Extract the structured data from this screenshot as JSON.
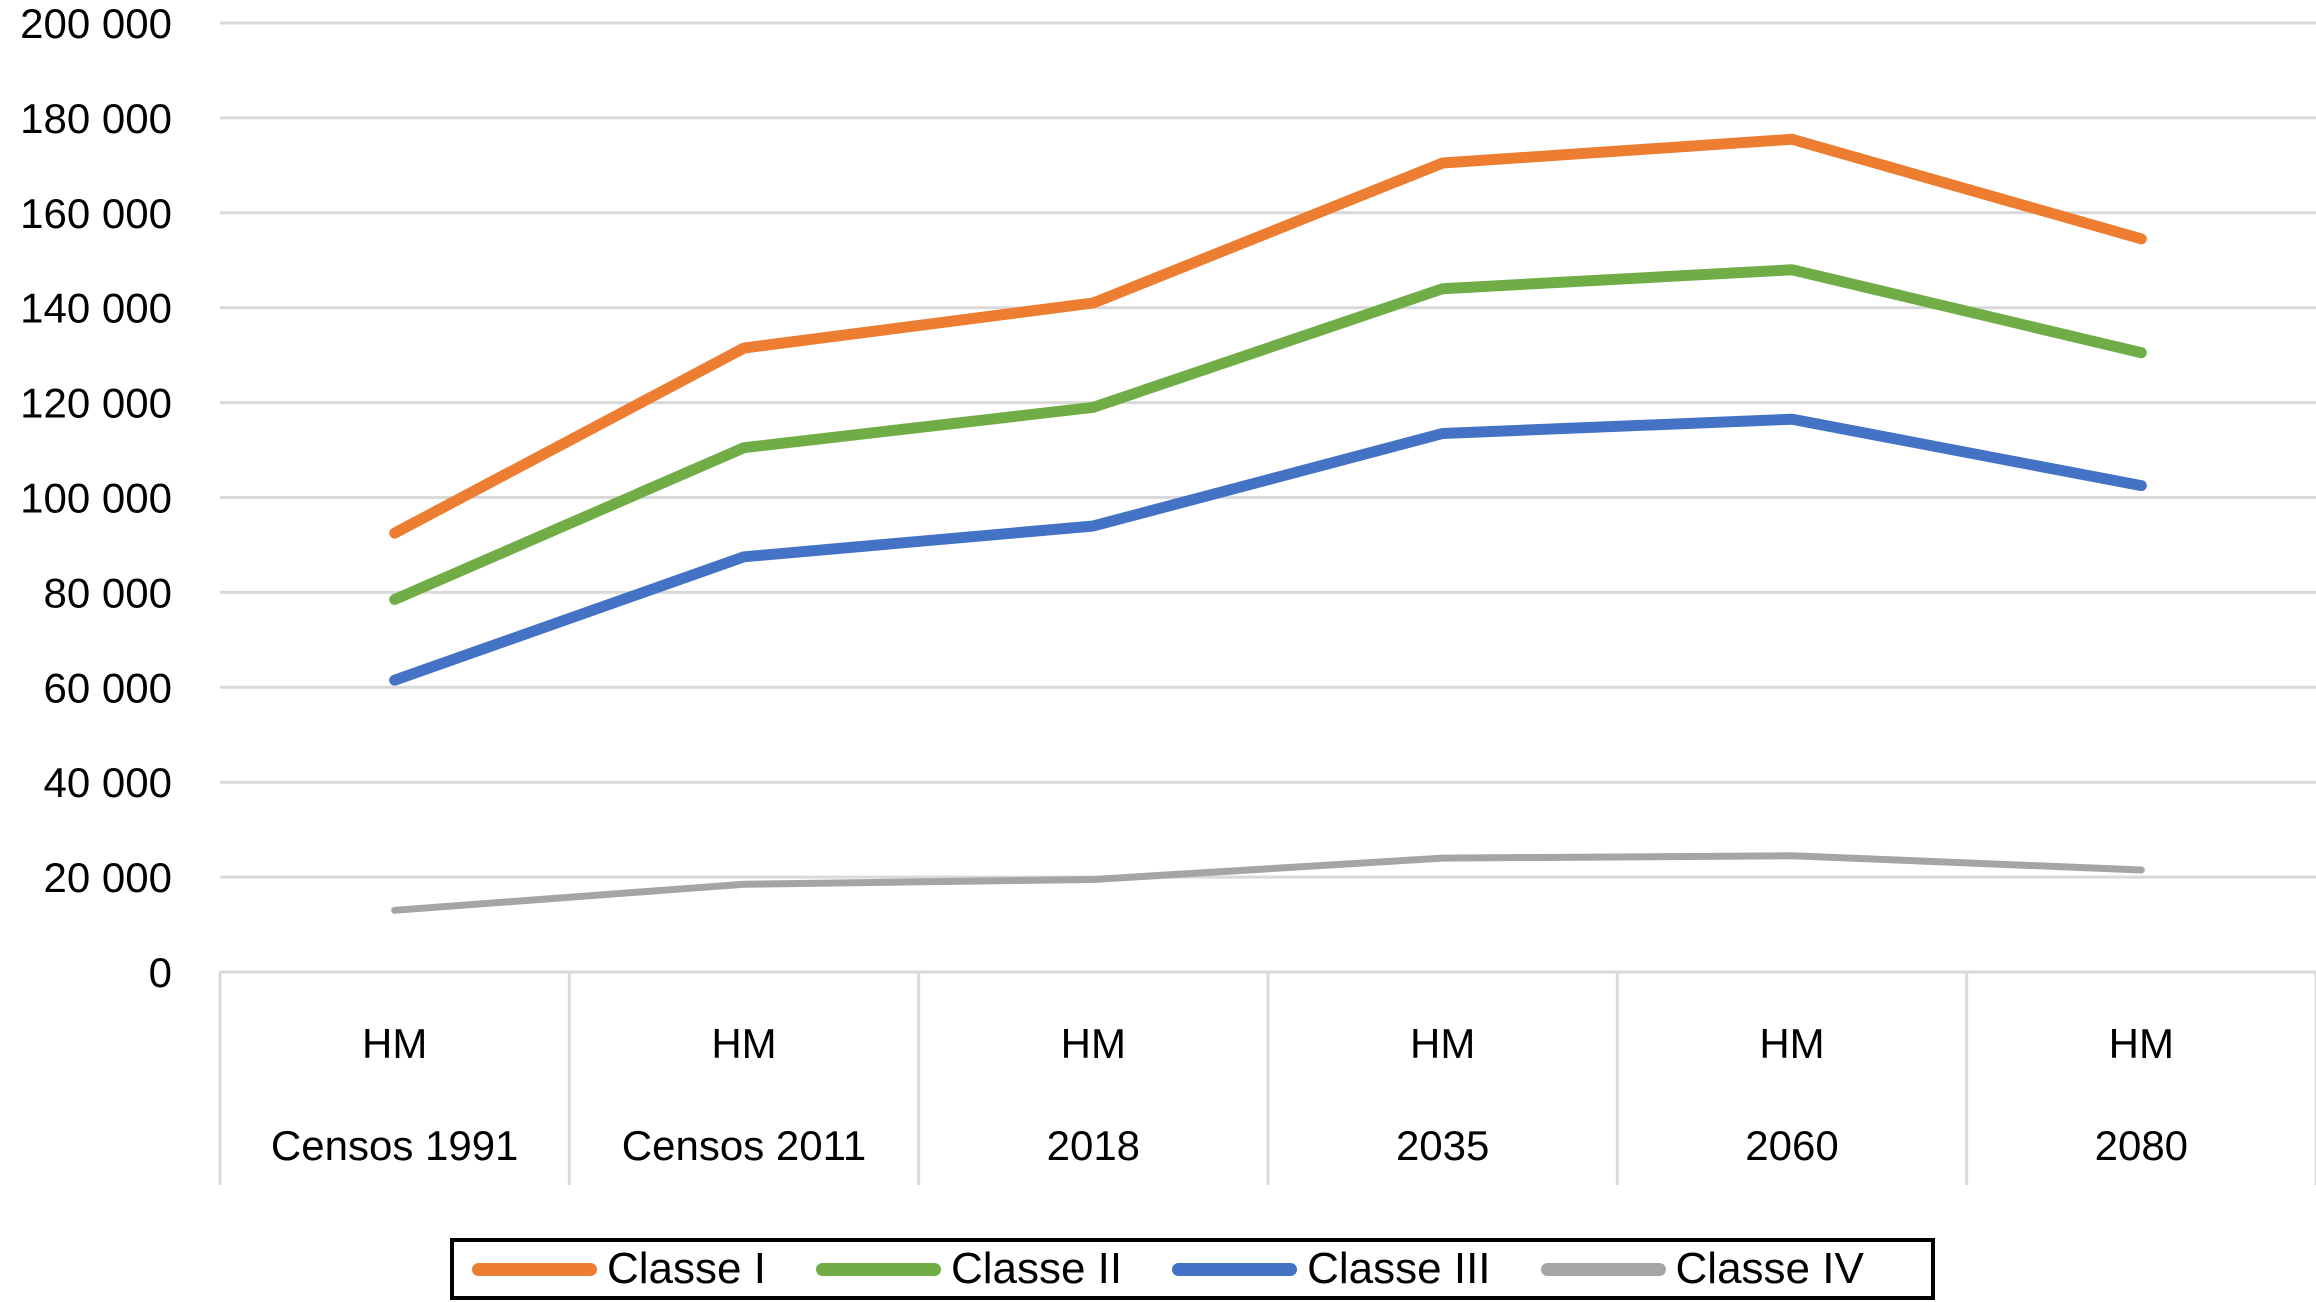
{
  "chart_data": {
    "type": "line",
    "title": "",
    "xlabel": "",
    "ylabel": "",
    "categories": [
      [
        "HM",
        "Censos 1991"
      ],
      [
        "HM",
        "Censos 2011"
      ],
      [
        "HM",
        "2018"
      ],
      [
        "HM",
        "2035"
      ],
      [
        "HM",
        "2060"
      ],
      [
        "HM",
        "2080"
      ]
    ],
    "series": [
      {
        "name": "Classe I",
        "color": "#ED7D31",
        "values": [
          92500,
          131500,
          141000,
          170500,
          175500,
          154500
        ]
      },
      {
        "name": "Classe II",
        "color": "#70AD47",
        "values": [
          78500,
          110500,
          119000,
          144000,
          148000,
          130500
        ]
      },
      {
        "name": "Classe III",
        "color": "#4472C4",
        "values": [
          61500,
          87500,
          94000,
          113500,
          116500,
          102500
        ]
      },
      {
        "name": "Classe IV",
        "color": "#A5A5A5",
        "values": [
          13000,
          18500,
          19500,
          24000,
          24500,
          21500
        ]
      }
    ],
    "y_axis": {
      "min": 0,
      "max": 200000,
      "step": 20000,
      "tick_labels": [
        "0",
        "20 000",
        "40 000",
        "60 000",
        "80 000",
        "100 000",
        "120 000",
        "140 000",
        "160 000",
        "180 000",
        "200 000"
      ]
    },
    "grid": true,
    "gridline_color": "#D9D9D9",
    "axis_text_color": "#000000",
    "legend_position": "bottom",
    "legend_border_color": "#000000"
  }
}
